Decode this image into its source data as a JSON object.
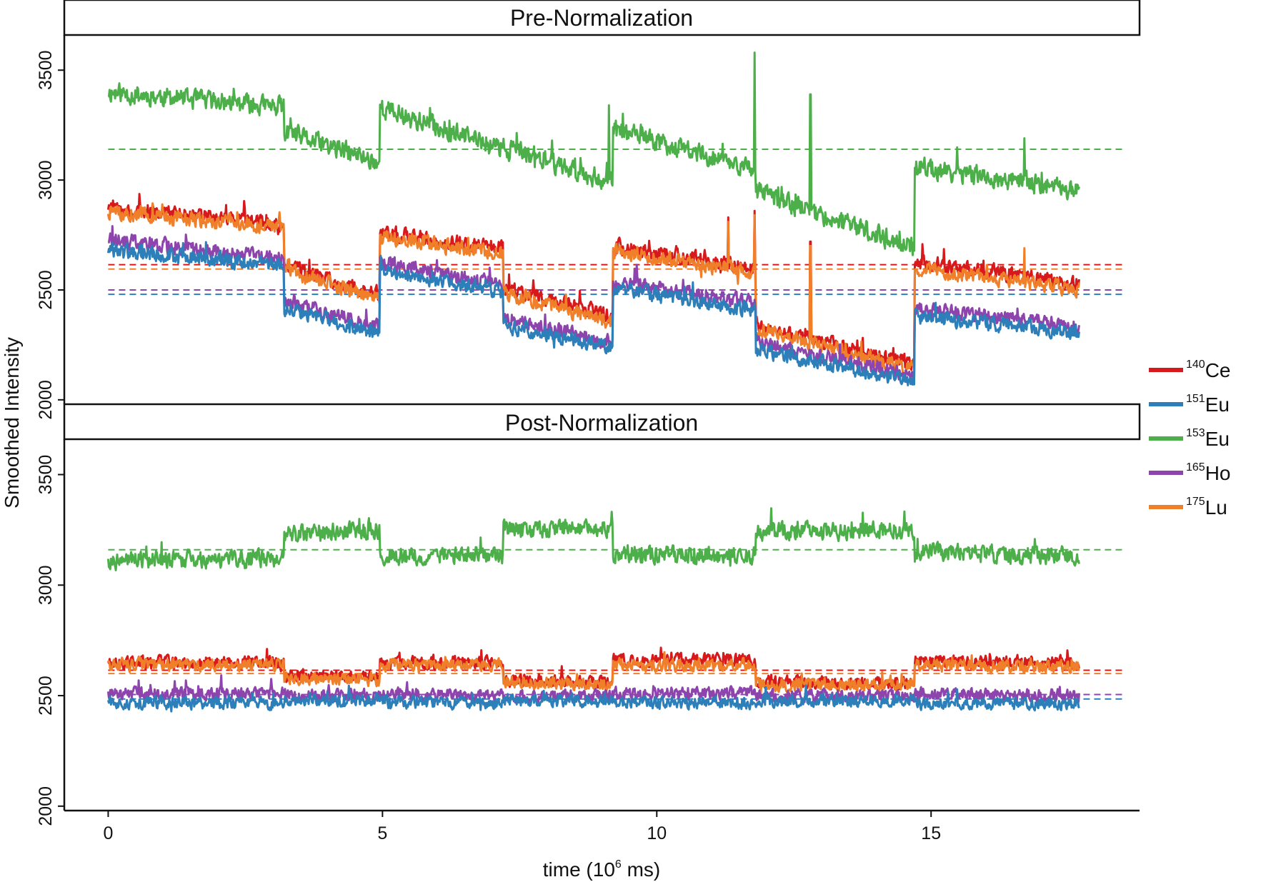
{
  "chart_data": {
    "type": "line",
    "ylabel": "Smoothed Intensity",
    "xlabel_main": "time (10",
    "xlabel_sup": "6",
    "xlabel_tail": " ms)",
    "xlim": [
      -0.8,
      18.8
    ],
    "ylim": [
      1980,
      3660
    ],
    "x_ticks": [
      0,
      5,
      10,
      15
    ],
    "x_tick_labels": [
      "0",
      "5",
      "10",
      "15"
    ],
    "y_ticks": [
      2000,
      2500,
      3000,
      3500
    ],
    "y_tick_labels": [
      "2000",
      "2500",
      "3000",
      "3500"
    ],
    "segment_bounds": [
      0,
      3.2,
      4.95,
      7.2,
      9.2,
      11.8,
      14.7,
      17.7
    ],
    "legend": [
      {
        "key": "ce140",
        "sup": "140",
        "name": "Ce",
        "color": "#d7191c"
      },
      {
        "key": "eu151",
        "sup": "151",
        "name": "Eu",
        "color": "#2c7fb8"
      },
      {
        "key": "eu153",
        "sup": "153",
        "name": "Eu",
        "color": "#4daf4a"
      },
      {
        "key": "ho165",
        "sup": "165",
        "name": "Ho",
        "color": "#8e44ad"
      },
      {
        "key": "lu175",
        "sup": "175",
        "name": "Lu",
        "color": "#f07f2a"
      }
    ],
    "panels": [
      {
        "title": "Pre-Normalization",
        "series": [
          {
            "key": "eu153",
            "color": "#4daf4a",
            "noise": 40,
            "reference": 3140,
            "segments": [
              [
                3400,
                3330
              ],
              [
                3220,
                3080
              ],
              [
                3330,
                3140
              ],
              [
                3150,
                2990
              ],
              [
                3230,
                3050
              ],
              [
                2950,
                2690
              ],
              [
                3060,
                2950
              ]
            ],
            "spikes": [
              [
                11.78,
                3580
              ],
              [
                12.8,
                3390
              ],
              [
                9.13,
                3340
              ],
              [
                16.7,
                3190
              ]
            ]
          },
          {
            "key": "ce140",
            "color": "#d7191c",
            "noise": 30,
            "reference": 2615,
            "segments": [
              [
                2880,
                2800
              ],
              [
                2610,
                2480
              ],
              [
                2760,
                2690
              ],
              [
                2510,
                2380
              ],
              [
                2700,
                2600
              ],
              [
                2340,
                2160
              ],
              [
                2630,
                2530
              ]
            ],
            "spikes": [
              [
                11.78,
                2860
              ],
              [
                11.3,
                2830
              ],
              [
                12.8,
                2720
              ]
            ]
          },
          {
            "key": "lu175",
            "color": "#f07f2a",
            "noise": 30,
            "reference": 2595,
            "segments": [
              [
                2860,
                2780
              ],
              [
                2590,
                2460
              ],
              [
                2740,
                2665
              ],
              [
                2490,
                2350
              ],
              [
                2680,
                2575
              ],
              [
                2320,
                2140
              ],
              [
                2600,
                2500
              ]
            ],
            "spikes": [
              [
                11.78,
                2840
              ],
              [
                11.3,
                2810
              ],
              [
                12.8,
                2700
              ],
              [
                16.7,
                2690
              ]
            ]
          },
          {
            "key": "ho165",
            "color": "#8e44ad",
            "noise": 30,
            "reference": 2500,
            "segments": [
              [
                2730,
                2640
              ],
              [
                2450,
                2330
              ],
              [
                2630,
                2520
              ],
              [
                2370,
                2260
              ],
              [
                2540,
                2440
              ],
              [
                2260,
                2110
              ],
              [
                2410,
                2340
              ]
            ],
            "spikes": []
          },
          {
            "key": "eu151",
            "color": "#2c7fb8",
            "noise": 30,
            "reference": 2480,
            "segments": [
              [
                2680,
                2610
              ],
              [
                2420,
                2300
              ],
              [
                2590,
                2490
              ],
              [
                2340,
                2240
              ],
              [
                2510,
                2410
              ],
              [
                2230,
                2080
              ],
              [
                2380,
                2310
              ]
            ],
            "spikes": []
          }
        ]
      },
      {
        "title": "Post-Normalization",
        "series": [
          {
            "key": "eu153",
            "color": "#4daf4a",
            "noise": 35,
            "reference": 3160,
            "segments": [
              [
                3110,
                3120
              ],
              [
                3230,
                3250
              ],
              [
                3130,
                3140
              ],
              [
                3250,
                3260
              ],
              [
                3140,
                3130
              ],
              [
                3240,
                3250
              ],
              [
                3150,
                3130
              ]
            ],
            "spikes": []
          },
          {
            "key": "ce140",
            "color": "#d7191c",
            "noise": 25,
            "reference": 2615,
            "segments": [
              [
                2650,
                2650
              ],
              [
                2590,
                2580
              ],
              [
                2650,
                2650
              ],
              [
                2570,
                2560
              ],
              [
                2660,
                2660
              ],
              [
                2560,
                2560
              ],
              [
                2660,
                2650
              ]
            ],
            "spikes": []
          },
          {
            "key": "lu175",
            "color": "#f07f2a",
            "noise": 25,
            "reference": 2600,
            "segments": [
              [
                2640,
                2640
              ],
              [
                2580,
                2570
              ],
              [
                2640,
                2640
              ],
              [
                2560,
                2550
              ],
              [
                2640,
                2640
              ],
              [
                2550,
                2550
              ],
              [
                2640,
                2630
              ]
            ],
            "spikes": []
          },
          {
            "key": "ho165",
            "color": "#8e44ad",
            "noise": 25,
            "reference": 2505,
            "segments": [
              [
                2510,
                2510
              ],
              [
                2500,
                2500
              ],
              [
                2510,
                2500
              ],
              [
                2490,
                2500
              ],
              [
                2510,
                2510
              ],
              [
                2500,
                2500
              ],
              [
                2510,
                2500
              ]
            ],
            "spikes": []
          },
          {
            "key": "eu151",
            "color": "#2c7fb8",
            "noise": 25,
            "reference": 2485,
            "segments": [
              [
                2470,
                2465
              ],
              [
                2480,
                2480
              ],
              [
                2470,
                2465
              ],
              [
                2480,
                2475
              ],
              [
                2470,
                2470
              ],
              [
                2475,
                2480
              ],
              [
                2465,
                2465
              ]
            ],
            "spikes": []
          }
        ]
      }
    ]
  }
}
